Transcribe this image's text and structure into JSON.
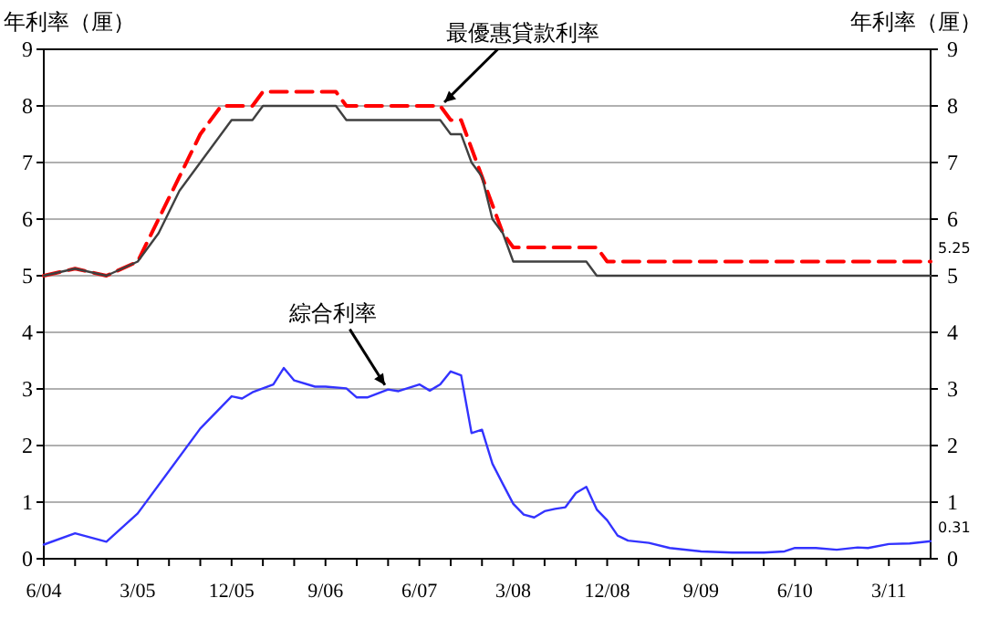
{
  "chart_data": {
    "type": "line",
    "ylabel": "年利率（厘）",
    "y2label": "年利率（厘）",
    "xlim": [
      "2004-06",
      "2011-07"
    ],
    "xticks": [
      {
        "value": "2004-06",
        "label": "6/04"
      },
      {
        "value": "2004-09",
        "label": null
      },
      {
        "value": "2004-12",
        "label": null
      },
      {
        "value": "2005-03",
        "label": "3/05"
      },
      {
        "value": "2005-06",
        "label": null
      },
      {
        "value": "2005-09",
        "label": null
      },
      {
        "value": "2005-12",
        "label": "12/05"
      },
      {
        "value": "2006-03",
        "label": null
      },
      {
        "value": "2006-06",
        "label": null
      },
      {
        "value": "2006-09",
        "label": "9/06"
      },
      {
        "value": "2006-12",
        "label": null
      },
      {
        "value": "2007-03",
        "label": null
      },
      {
        "value": "2007-06",
        "label": "6/07"
      },
      {
        "value": "2007-09",
        "label": null
      },
      {
        "value": "2007-12",
        "label": null
      },
      {
        "value": "2008-03",
        "label": "3/08"
      },
      {
        "value": "2008-06",
        "label": null
      },
      {
        "value": "2008-09",
        "label": null
      },
      {
        "value": "2008-12",
        "label": "12/08"
      },
      {
        "value": "2009-03",
        "label": null
      },
      {
        "value": "2009-06",
        "label": null
      },
      {
        "value": "2009-09",
        "label": "9/09"
      },
      {
        "value": "2009-12",
        "label": null
      },
      {
        "value": "2010-03",
        "label": null
      },
      {
        "value": "2010-06",
        "label": "6/10"
      },
      {
        "value": "2010-09",
        "label": null
      },
      {
        "value": "2010-12",
        "label": null
      },
      {
        "value": "2011-03",
        "label": "3/11"
      },
      {
        "value": "2011-06",
        "label": null
      }
    ],
    "ylim": [
      0,
      9
    ],
    "yticks": [
      0,
      1,
      2,
      3,
      4,
      5,
      6,
      7,
      8,
      9
    ],
    "y2lim": [
      0,
      9
    ],
    "y2ticks": [
      0,
      1,
      2,
      3,
      4,
      5,
      6,
      7,
      8,
      9
    ],
    "grid": "y",
    "series": [
      {
        "color": "#ff0000",
        "line_style": "dashed",
        "x": [
          "2004-06",
          "2004-09",
          "2004-12",
          "2005-03",
          "2005-05",
          "2005-07",
          "2005-09",
          "2005-11",
          "2006-02",
          "2006-03",
          "2006-10",
          "2006-11",
          "2007-08",
          "2007-09",
          "2007-10",
          "2007-12",
          "2008-02",
          "2008-03",
          "2008-11",
          "2008-12",
          "2011-07"
        ],
        "values": [
          5.0,
          5.125,
          5.0,
          5.25,
          6.0,
          6.75,
          7.5,
          8.0,
          8.0,
          8.25,
          8.25,
          8.0,
          8.0,
          7.75,
          7.75,
          6.75,
          5.75,
          5.5,
          5.5,
          5.25,
          5.25
        ]
      },
      {
        "color": "#404040",
        "line_style": "solid",
        "x": [
          "2004-06",
          "2004-09",
          "2004-12",
          "2005-03",
          "2005-05",
          "2005-07",
          "2005-09",
          "2005-12",
          "2006-02",
          "2006-03",
          "2006-10",
          "2006-11",
          "2007-08",
          "2007-09",
          "2007-10",
          "2007-11",
          "2007-12",
          "2008-01",
          "2008-02",
          "2008-03",
          "2008-10",
          "2008-11",
          "2011-07"
        ],
        "values": [
          5.0,
          5.125,
          5.0,
          5.25,
          5.75,
          6.5,
          7.0,
          7.75,
          7.75,
          8.0,
          8.0,
          7.75,
          7.75,
          7.5,
          7.5,
          7.0,
          6.75,
          6.0,
          5.75,
          5.25,
          5.25,
          5.0,
          5.0
        ]
      },
      {
        "color": "#3333ff",
        "line_style": "solid",
        "x": [
          "2004-06",
          "2004-09",
          "2004-12",
          "2005-03",
          "2005-09",
          "2005-12",
          "2006-01",
          "2006-02",
          "2006-04",
          "2006-05",
          "2006-06",
          "2006-08",
          "2006-09",
          "2006-11",
          "2006-12",
          "2007-01",
          "2007-03",
          "2007-04",
          "2007-06",
          "2007-07",
          "2007-08",
          "2007-09",
          "2007-10",
          "2007-11",
          "2007-12",
          "2008-01",
          "2008-02",
          "2008-03",
          "2008-04",
          "2008-05",
          "2008-06",
          "2008-07",
          "2008-08",
          "2008-09",
          "2008-10",
          "2008-11",
          "2008-12",
          "2009-01",
          "2009-02",
          "2009-04",
          "2009-06",
          "2009-09",
          "2009-12",
          "2010-03",
          "2010-05",
          "2010-06",
          "2010-08",
          "2010-10",
          "2010-12",
          "2011-01",
          "2011-03",
          "2011-05",
          "2011-07"
        ],
        "values": [
          0.25,
          0.45,
          0.3,
          0.8,
          2.3,
          2.87,
          2.83,
          2.94,
          3.08,
          3.37,
          3.15,
          3.04,
          3.04,
          3.01,
          2.85,
          2.85,
          2.99,
          2.96,
          3.08,
          2.97,
          3.08,
          3.31,
          3.24,
          2.22,
          2.28,
          1.68,
          1.32,
          0.97,
          0.78,
          0.73,
          0.84,
          0.88,
          0.91,
          1.16,
          1.27,
          0.87,
          0.68,
          0.41,
          0.32,
          0.28,
          0.19,
          0.13,
          0.11,
          0.11,
          0.13,
          0.19,
          0.19,
          0.16,
          0.2,
          0.19,
          0.26,
          0.27,
          0.31
        ]
      }
    ],
    "annotations": [
      {
        "text": "最優惠貸款利率",
        "x": "2007-08",
        "y": 8.0
      },
      {
        "text": "綜合利率",
        "x": "2007-03",
        "y": 2.99
      },
      {
        "text": "5.25",
        "x": "2011-07",
        "y": 5.25
      },
      {
        "text": "0.31",
        "x": "2011-07",
        "y": 0.31
      }
    ]
  }
}
